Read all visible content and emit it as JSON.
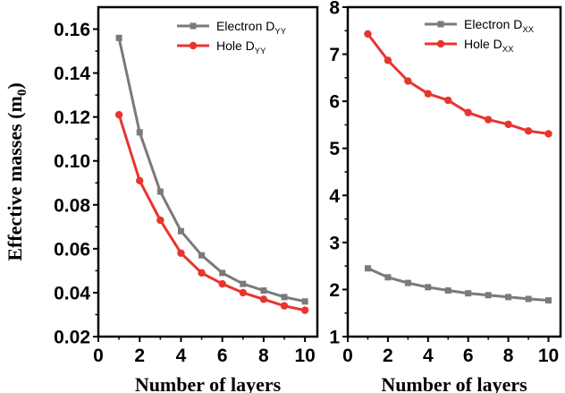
{
  "chart_data": [
    {
      "type": "line",
      "ylabel": "Effective masses (m",
      "ylabel_sub": "0",
      "ylabel_close": ")",
      "xlabel": "Number of layers",
      "xlim": [
        0,
        10.6
      ],
      "ylim": [
        0.02,
        0.17
      ],
      "xticks": [
        0,
        2,
        4,
        6,
        8,
        10
      ],
      "yticks": [
        0.02,
        0.04,
        0.06,
        0.08,
        0.1,
        0.12,
        0.14,
        0.16
      ],
      "ytick_labels": [
        "0.02",
        "0.04",
        "0.06",
        "0.08",
        "0.10",
        "0.12",
        "0.14",
        "0.16"
      ],
      "x": [
        1,
        2,
        3,
        4,
        5,
        6,
        7,
        8,
        9,
        10
      ],
      "legend_position": "top-right",
      "series": [
        {
          "name": "Electron D",
          "name_sub": "YY",
          "color": "#7a7a7a",
          "marker": "square",
          "values": [
            0.156,
            0.113,
            0.086,
            0.068,
            0.057,
            0.049,
            0.044,
            0.041,
            0.038,
            0.036
          ]
        },
        {
          "name": "Hole D",
          "name_sub": "YY",
          "color": "#e8342f",
          "marker": "circle",
          "values": [
            0.121,
            0.091,
            0.073,
            0.058,
            0.049,
            0.044,
            0.04,
            0.037,
            0.034,
            0.032
          ]
        }
      ]
    },
    {
      "type": "line",
      "xlabel": "Number of layers",
      "xlim": [
        0,
        10.6
      ],
      "ylim": [
        1,
        8
      ],
      "xticks": [
        0,
        2,
        4,
        6,
        8,
        10
      ],
      "yticks": [
        1,
        2,
        3,
        4,
        5,
        6,
        7,
        8
      ],
      "ytick_labels": [
        "1",
        "2",
        "3",
        "4",
        "5",
        "6",
        "7",
        "8"
      ],
      "x": [
        1,
        2,
        3,
        4,
        5,
        6,
        7,
        8,
        9,
        10
      ],
      "legend_position": "top-right",
      "series": [
        {
          "name": "Electron D",
          "name_sub": "XX",
          "color": "#7a7a7a",
          "marker": "square",
          "values": [
            2.45,
            2.26,
            2.14,
            2.05,
            1.98,
            1.92,
            1.88,
            1.84,
            1.8,
            1.77
          ]
        },
        {
          "name": "Hole D",
          "name_sub": "XX",
          "color": "#e8342f",
          "marker": "circle",
          "values": [
            7.43,
            6.87,
            6.43,
            6.16,
            6.02,
            5.76,
            5.61,
            5.51,
            5.37,
            5.31
          ]
        }
      ]
    }
  ]
}
